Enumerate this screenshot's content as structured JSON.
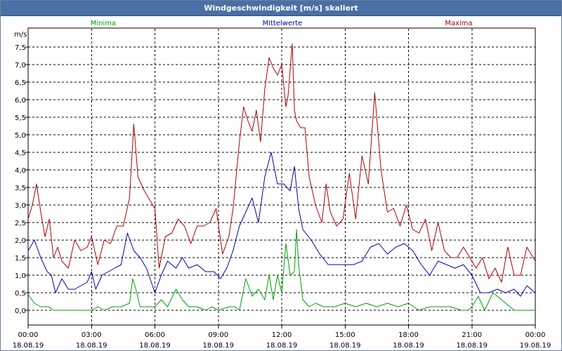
{
  "window": {
    "title": "Windgeschwindigkeit [m/s] skaliert"
  },
  "chart_data": {
    "type": "line",
    "title": "Windgeschwindigkeit [m/s] skaliert",
    "ylabel": "m/s",
    "ylim": [
      0,
      7.8
    ],
    "xlim": [
      0,
      24
    ],
    "grid": true,
    "y_ticks": [
      "0,0",
      "0,5",
      "1,0",
      "1,5",
      "2,0",
      "2,5",
      "3,0",
      "3,5",
      "4,0",
      "4,5",
      "5,0",
      "5,5",
      "6,0",
      "6,5",
      "7,0",
      "7,5"
    ],
    "y_tick_values": [
      0,
      0.5,
      1,
      1.5,
      2,
      2.5,
      3,
      3.5,
      4,
      4.5,
      5,
      5.5,
      6,
      6.5,
      7,
      7.5
    ],
    "x_ticks": [
      {
        "time": "00:00",
        "date": "18.08.19"
      },
      {
        "time": "03:00",
        "date": "18.08.19"
      },
      {
        "time": "06:00",
        "date": "18.08.19"
      },
      {
        "time": "09:00",
        "date": "18.08.19"
      },
      {
        "time": "12:00",
        "date": "18.08.19"
      },
      {
        "time": "15:00",
        "date": "18.08.19"
      },
      {
        "time": "18:00",
        "date": "18.08.19"
      },
      {
        "time": "21:00",
        "date": "18.08.19"
      },
      {
        "time": "00:00",
        "date": "19.08.19"
      }
    ],
    "series": [
      {
        "name": "Minima",
        "color": "#00a000",
        "x": [
          0,
          0.3,
          0.6,
          1.0,
          1.2,
          1.5,
          2.0,
          2.5,
          3.0,
          3.3,
          3.6,
          4.0,
          4.4,
          4.8,
          4.95,
          5.1,
          5.3,
          5.6,
          6.0,
          6.3,
          6.6,
          7.0,
          7.3,
          7.6,
          8.0,
          8.4,
          8.7,
          9.0,
          9.5,
          9.8,
          10.0,
          10.3,
          10.6,
          10.9,
          11.2,
          11.4,
          11.6,
          11.8,
          12.0,
          12.2,
          12.4,
          12.6,
          12.7,
          12.8,
          13.0,
          13.3,
          13.6,
          14.0,
          14.5,
          15.0,
          15.5,
          16.0,
          16.5,
          17.0,
          17.5,
          18.0,
          18.5,
          19.0,
          19.5,
          20.0,
          20.5,
          20.8,
          21.0,
          21.3,
          21.6,
          22.0,
          23.0,
          24.0
        ],
        "values": [
          0.45,
          0.2,
          0.1,
          0.1,
          0.0,
          0.0,
          0.0,
          0.0,
          0.0,
          0.1,
          0.0,
          0.1,
          0.1,
          0.2,
          0.9,
          0.6,
          0.1,
          0.1,
          0.1,
          0.3,
          0.1,
          0.6,
          0.3,
          0.1,
          0.1,
          0.0,
          0.1,
          0.0,
          0.1,
          0.1,
          0.0,
          0.9,
          0.4,
          0.6,
          0.3,
          1.0,
          0.3,
          1.0,
          0.5,
          1.9,
          1.0,
          1.1,
          2.3,
          1.3,
          0.3,
          0.1,
          0.2,
          0.1,
          0.1,
          0.2,
          0.1,
          0.2,
          0.1,
          0.2,
          0.1,
          0.2,
          0.0,
          0.1,
          0.1,
          0.1,
          0.0,
          0.0,
          0.1,
          0.4,
          0.0,
          0.5,
          0.0,
          0.0
        ]
      },
      {
        "name": "Mittelwerte",
        "color": "#0000b0",
        "x": [
          0,
          0.3,
          0.6,
          0.9,
          1.1,
          1.3,
          1.6,
          1.9,
          2.2,
          2.5,
          2.8,
          3.0,
          3.2,
          3.5,
          3.8,
          4.1,
          4.4,
          4.7,
          5.0,
          5.3,
          5.6,
          6.0,
          6.3,
          6.6,
          7.0,
          7.3,
          7.6,
          8.0,
          8.4,
          8.8,
          9.1,
          9.4,
          9.7,
          10.0,
          10.3,
          10.6,
          10.9,
          11.2,
          11.5,
          11.8,
          12.1,
          12.4,
          12.6,
          12.8,
          13.0,
          13.4,
          13.8,
          14.2,
          14.6,
          15.0,
          15.4,
          15.8,
          16.2,
          16.6,
          17.0,
          17.4,
          17.8,
          18.2,
          18.6,
          19.0,
          19.4,
          19.8,
          20.2,
          20.6,
          21.0,
          21.4,
          21.8,
          22.2,
          22.6,
          23.0,
          23.3,
          23.6,
          24.0
        ],
        "values": [
          1.7,
          2.0,
          1.5,
          1.1,
          1.0,
          0.5,
          0.9,
          0.6,
          0.6,
          0.7,
          0.8,
          1.1,
          0.6,
          1.0,
          1.1,
          1.2,
          1.3,
          2.2,
          1.7,
          1.5,
          1.2,
          0.5,
          1.0,
          1.4,
          1.2,
          1.5,
          1.2,
          1.3,
          1.1,
          1.1,
          0.9,
          1.2,
          1.7,
          2.4,
          2.8,
          3.2,
          2.5,
          3.8,
          4.5,
          3.6,
          3.6,
          3.4,
          4.1,
          2.9,
          2.3,
          2.0,
          1.6,
          1.3,
          1.3,
          1.3,
          1.3,
          1.4,
          1.8,
          1.9,
          1.6,
          1.8,
          1.9,
          1.7,
          1.3,
          1.0,
          1.4,
          1.3,
          1.2,
          1.3,
          1.0,
          0.5,
          0.5,
          0.6,
          0.5,
          0.6,
          0.4,
          0.7,
          0.5
        ]
      },
      {
        "name": "Maxima",
        "color": "#b00000",
        "x": [
          0,
          0.2,
          0.4,
          0.6,
          0.8,
          1.0,
          1.2,
          1.4,
          1.6,
          1.9,
          2.2,
          2.5,
          2.8,
          3.0,
          3.3,
          3.6,
          3.9,
          4.2,
          4.5,
          4.8,
          5.0,
          5.2,
          5.5,
          5.8,
          6.0,
          6.2,
          6.5,
          6.8,
          7.1,
          7.4,
          7.7,
          8.0,
          8.3,
          8.6,
          8.9,
          9.2,
          9.5,
          9.7,
          10.0,
          10.2,
          10.4,
          10.6,
          10.8,
          11.0,
          11.2,
          11.4,
          11.6,
          11.8,
          12.0,
          12.2,
          12.3,
          12.5,
          12.6,
          12.7,
          12.9,
          13.1,
          13.3,
          13.6,
          13.9,
          14.1,
          14.3,
          14.6,
          14.9,
          15.2,
          15.5,
          15.8,
          16.1,
          16.4,
          16.7,
          17.0,
          17.3,
          17.6,
          17.9,
          18.2,
          18.5,
          18.8,
          19.1,
          19.4,
          19.7,
          20.0,
          20.3,
          20.6,
          20.9,
          21.2,
          21.5,
          21.8,
          22.1,
          22.4,
          22.7,
          23.0,
          23.3,
          23.6,
          24.0
        ],
        "values": [
          2.6,
          3.0,
          3.6,
          2.8,
          2.1,
          2.6,
          1.5,
          1.8,
          1.4,
          1.2,
          2.0,
          1.7,
          1.8,
          2.1,
          1.3,
          2.0,
          1.9,
          2.4,
          2.4,
          3.2,
          5.3,
          3.8,
          3.4,
          3.1,
          2.9,
          1.2,
          2.1,
          2.2,
          2.6,
          2.4,
          1.9,
          2.4,
          2.4,
          2.5,
          2.9,
          1.6,
          2.1,
          2.9,
          4.8,
          5.8,
          5.4,
          5.1,
          5.7,
          4.8,
          6.3,
          7.2,
          6.9,
          6.7,
          7.0,
          5.8,
          6.1,
          7.6,
          5.7,
          5.4,
          5.2,
          5.2,
          3.8,
          3.0,
          2.5,
          3.6,
          2.8,
          2.4,
          2.6,
          3.9,
          2.6,
          4.4,
          3.6,
          6.2,
          4.0,
          2.8,
          2.9,
          2.4,
          3.0,
          2.3,
          2.2,
          2.6,
          1.7,
          2.5,
          1.7,
          1.5,
          1.5,
          1.8,
          1.5,
          1.2,
          1.5,
          0.9,
          1.2,
          0.8,
          1.8,
          1.0,
          1.0,
          1.8,
          1.4
        ]
      }
    ]
  }
}
